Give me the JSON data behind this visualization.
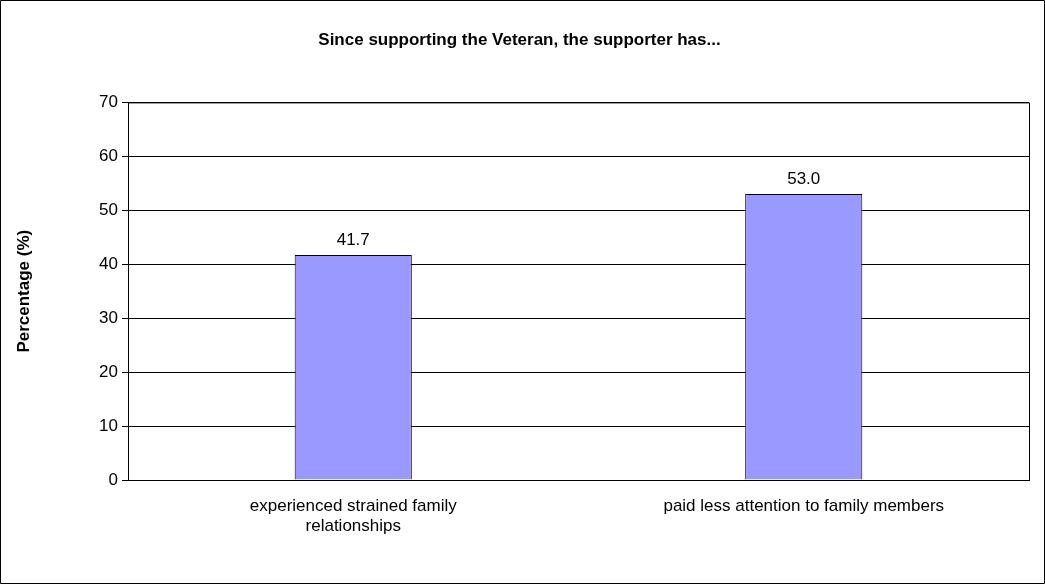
{
  "chart_data": {
    "type": "bar",
    "title": "Since supporting the Veteran, the supporter has...",
    "ylabel": "Percentage (%)",
    "categories": [
      "experienced strained family relationships",
      "paid less attention to family members"
    ],
    "values": [
      41.7,
      53.0
    ],
    "value_labels": [
      "41.7",
      "53.0"
    ],
    "color": "#9999ff",
    "ylim": [
      0,
      70
    ],
    "yticks": [
      0,
      10,
      20,
      30,
      40,
      50,
      60,
      70
    ],
    "grid": "y",
    "legend": false
  }
}
